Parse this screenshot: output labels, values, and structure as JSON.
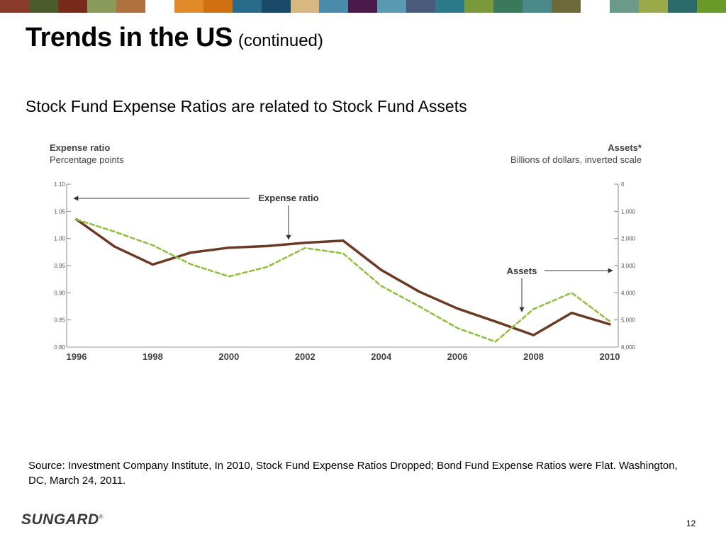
{
  "header": {
    "stripe_colors": [
      "#8a3a2a",
      "#4a5a2a",
      "#7a2a1a",
      "#8a9a5a",
      "#b07040",
      "#ffffff",
      "#e08a2a",
      "#d07010",
      "#2a6a8a",
      "#1a4a6a",
      "#d8b880",
      "#4a8aaa",
      "#4a1a4a",
      "#5a9ab0",
      "#4a5a7a",
      "#2a7a8a",
      "#7a9a3a",
      "#3a7a5a",
      "#4a8a8a",
      "#6a6a3a",
      "#ffffff",
      "#6a9a8a",
      "#9aaa4a",
      "#2a6a6a",
      "#6a9a2a"
    ]
  },
  "slide": {
    "title": "Trends in the US",
    "title_suffix": "(continued)",
    "subtitle": "Stock Fund Expense Ratios are related to Stock Fund Assets",
    "source": "Source:  Investment Company Institute, In 2010, Stock Fund Expense Ratios Dropped; Bond Fund Expense Ratios were Flat.  Washington, DC, March 24, 2011.",
    "logo_text": "SUNGARD",
    "logo_mark": "®",
    "page_number": "12"
  },
  "chart_data": {
    "type": "line",
    "title_left": "Expense ratio",
    "subtitle_left": "Percentage points",
    "title_right": "Assets*",
    "subtitle_right": "Billions of dollars, inverted scale",
    "x": [
      1996,
      1997,
      1998,
      1999,
      2000,
      2001,
      2002,
      2003,
      2004,
      2005,
      2006,
      2007,
      2008,
      2009,
      2010
    ],
    "x_tick_labels": [
      "1996",
      "1998",
      "2000",
      "2002",
      "2004",
      "2006",
      "2008",
      "2010"
    ],
    "y_left_ticks": [
      "1.10",
      "1.05",
      "1.00",
      "0.95",
      "0.90",
      "0.85",
      "0.80"
    ],
    "y_right_ticks": [
      "0",
      "1,000",
      "2,000",
      "3,000",
      "4,000",
      "5,000",
      "6,000"
    ],
    "ylim_left": [
      0.8,
      1.1
    ],
    "ylim_right": [
      6000,
      0
    ],
    "right_axis_inverted": true,
    "series": [
      {
        "name": "Expense ratio",
        "axis": "left",
        "color": "#6b3a24",
        "style": "solid",
        "values": [
          1.035,
          0.985,
          0.952,
          0.974,
          0.983,
          0.986,
          0.992,
          0.996,
          0.942,
          0.902,
          0.871,
          0.847,
          0.822,
          0.863,
          0.842
        ]
      },
      {
        "name": "Assets",
        "axis": "right",
        "color": "#8dbf3c",
        "style": "dashed",
        "values": [
          1300,
          1750,
          2250,
          2950,
          3400,
          3050,
          2350,
          2550,
          3750,
          4500,
          5300,
          5800,
          4600,
          4000,
          5050
        ]
      }
    ],
    "annotations": [
      {
        "text": "Expense ratio",
        "points_to": "left-axis"
      },
      {
        "text": "Assets",
        "points_to": "right-axis"
      }
    ],
    "grid": false
  }
}
